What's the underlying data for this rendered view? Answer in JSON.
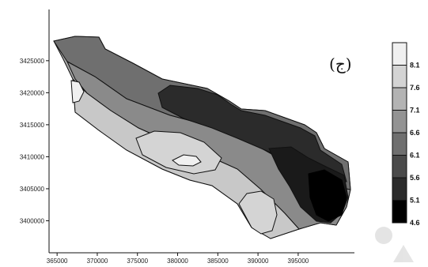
{
  "chart_data": {
    "type": "heatmap",
    "title": "",
    "xlabel": "",
    "ylabel": "",
    "panel_label": "(ج)",
    "xlim": [
      364000,
      402000
    ],
    "ylim": [
      3395000,
      3433000
    ],
    "x_ticks": [
      365000,
      370000,
      375000,
      380000,
      385000,
      390000,
      395000
    ],
    "x_tick_labels": [
      "365000",
      "370000",
      "375000",
      "380000",
      "385000",
      "390000",
      "395000"
    ],
    "y_ticks": [
      3400000,
      3405000,
      3410000,
      3415000,
      3420000,
      3425000
    ],
    "y_tick_labels": [
      "3400000",
      "3405000",
      "3410000",
      "3415000",
      "3420000",
      "3425000"
    ],
    "legend": {
      "placement": "right",
      "levels": [
        "8.1",
        "7.6",
        "7.1",
        "6.6",
        "6.1",
        "5.6",
        "5.1",
        "4.6"
      ],
      "colors": [
        "#f0f0f0",
        "#d4d4d4",
        "#b3b3b3",
        "#939393",
        "#6f6f6f",
        "#4a4a4a",
        "#2b2b2b",
        "#000000"
      ]
    },
    "regions": [
      {
        "name": "boundary",
        "fill": "#a6a6a6"
      },
      {
        "name": "north-edge-zone",
        "fill": "#6f6f6f"
      },
      {
        "name": "upper-mid-zone",
        "fill": "#8a8a8a"
      },
      {
        "name": "west-high-zone",
        "fill": "#c8c8c8"
      },
      {
        "name": "central-high-zone",
        "fill": "#d4d4d4"
      },
      {
        "name": "central-peak",
        "fill": "#f0f0f0"
      },
      {
        "name": "west-tip-peak",
        "fill": "#f0f0f0"
      },
      {
        "name": "south-high-zone",
        "fill": "#d4d4d4"
      },
      {
        "name": "northeast-low-zone",
        "fill": "#2b2b2b"
      },
      {
        "name": "east-low-zone",
        "fill": "#1a1a1a"
      },
      {
        "name": "east-min-zone",
        "fill": "#000000"
      }
    ]
  }
}
